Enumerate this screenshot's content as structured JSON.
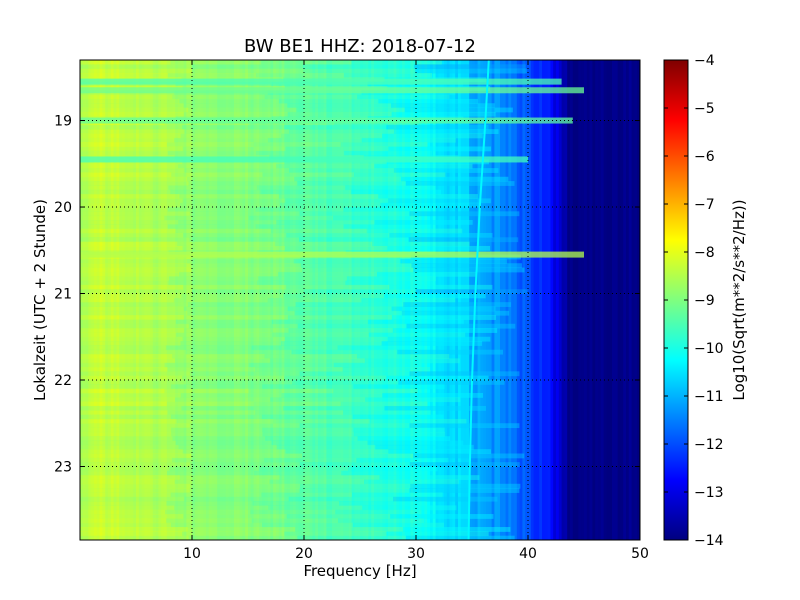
{
  "chart_data": {
    "type": "heatmap",
    "title": "BW BE1 HHZ: 2018-07-12",
    "xlabel": "Frequency [Hz]",
    "ylabel": "Lokalzeit (UTC + 2 Stunde)",
    "xlim": [
      0,
      50
    ],
    "ylim": [
      18.3,
      23.85
    ],
    "y_inverted": true,
    "x_ticks": [
      10,
      20,
      30,
      40,
      50
    ],
    "y_ticks": [
      19,
      20,
      21,
      22,
      23
    ],
    "grid": true,
    "colorbar": {
      "label": "Log10(Sqrt(m**2/s**2/Hz))",
      "range": [
        -14,
        -4
      ],
      "ticks": [
        -4,
        -5,
        -6,
        -7,
        -8,
        -9,
        -10,
        -11,
        -12,
        -13,
        -14
      ],
      "colormap": "jet",
      "colors": [
        "#00007f",
        "#0000ff",
        "#007fff",
        "#00ffff",
        "#7fff7f",
        "#ffff00",
        "#ff7f00",
        "#ff0000",
        "#7f0000"
      ]
    },
    "frequency_profile": {
      "frequency_hz": [
        0,
        2,
        5,
        10,
        15,
        20,
        25,
        30,
        32,
        34,
        35,
        36,
        38,
        40,
        42,
        43,
        44,
        50
      ],
      "log_amplitude": [
        -8.6,
        -8.2,
        -8.5,
        -8.8,
        -9.0,
        -9.3,
        -9.7,
        -10.1,
        -10.4,
        -10.6,
        -11.0,
        -11.2,
        -11.5,
        -12.0,
        -12.7,
        -13.3,
        -14.0,
        -14.0
      ]
    },
    "bands": [
      {
        "time": 18.55,
        "f_end": 43,
        "level": -9.5
      },
      {
        "time": 18.65,
        "f_end": 45,
        "level": -9.2
      },
      {
        "time": 19.0,
        "f_end": 44,
        "level": -9.3
      },
      {
        "time": 19.45,
        "f_end": 40,
        "level": -9.6
      },
      {
        "time": 20.55,
        "f_end": 45,
        "level": -8.5
      }
    ],
    "line_feature": {
      "time": [
        18.3,
        19.0,
        20.0,
        21.0,
        22.0,
        23.0,
        23.85
      ],
      "frequency_hz": [
        36.5,
        36.2,
        35.7,
        35.3,
        35.0,
        34.8,
        34.7
      ],
      "level": -10.3
    }
  }
}
